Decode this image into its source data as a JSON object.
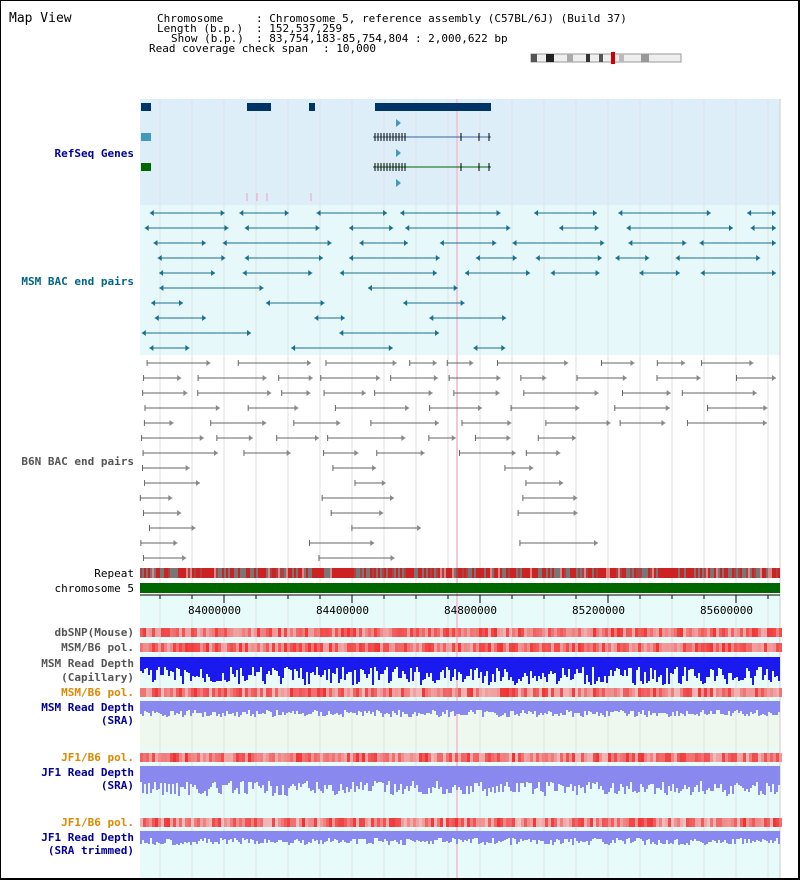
{
  "view": {
    "title": "Map View"
  },
  "info": {
    "chromosome_key": "Chromosome",
    "chromosome_val": ": Chromosome 5, reference assembly (C57BL/6J) (Build 37)",
    "length_key": "Length (b.p.)",
    "length_val": ": 152,537,259",
    "show_key": "Show (b.p.)",
    "show_val": ": 83,754,183-85,754,804 : 2,000,622 bp",
    "coverage_key": "Read coverage check span",
    "coverage_val": ": 10,000"
  },
  "tracks": {
    "refseq": "RefSeq Genes",
    "msm_bac": "MSM BAC end pairs",
    "b6n_bac": "B6N BAC end pairs",
    "repeat": "Repeat",
    "chromosome": "chromosome 5",
    "dbsnp": "dbSNP(Mouse)",
    "msm_b6_pol_1": "MSM/B6 pol.",
    "msm_depth_cap_1": "MSM Read Depth",
    "msm_depth_cap_2": "(Capillary)",
    "msm_b6_pol_2": "MSM/B6 pol.",
    "msm_depth_sra_1": "MSM Read Depth",
    "msm_depth_sra_2": "(SRA)",
    "jf1_pol_1": "JF1/B6 pol.",
    "jf1_depth_sra_1": "JF1 Read Depth",
    "jf1_depth_sra_2": "(SRA)",
    "jf1_pol_2": "JF1/B6 pol.",
    "jf1_depth_trim_1": "JF1 Read Depth",
    "jf1_depth_trim_2": "(SRA trimmed)"
  },
  "axis": {
    "ticks": [
      "84000000",
      "84400000",
      "84800000",
      "85200000",
      "85600000"
    ]
  },
  "colors": {
    "refseq_bg": "#ddeef8",
    "msm_bg": "#e6f8fa",
    "label_navy": "#000099",
    "label_teal": "#006688",
    "label_gray": "#555555",
    "label_orange": "#dd8800",
    "gene_dark": "#003366",
    "msm_line": "#1a6f90",
    "b6n_line": "#666666",
    "chrom_green": "#006600",
    "depth_blue": "#1a1aee",
    "depth_light": "#8888ee"
  }
}
